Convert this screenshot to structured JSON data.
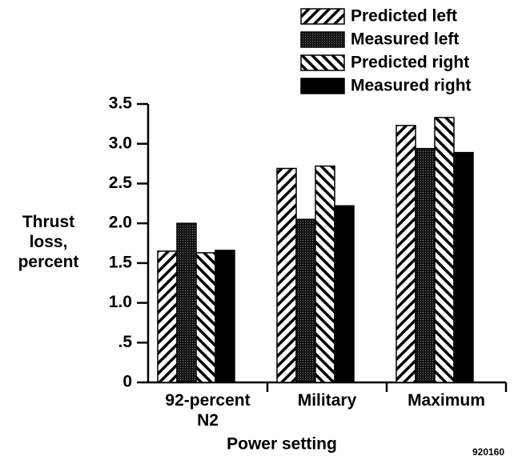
{
  "chart_data": {
    "type": "bar",
    "categories": [
      "92-percent\nN2",
      "Military",
      "Maximum"
    ],
    "series": [
      {
        "name": "Predicted left",
        "color": "#000000",
        "hatch": "/",
        "values": [
          1.65,
          2.69,
          3.23
        ]
      },
      {
        "name": "Measured left",
        "color": "#1a1a1a",
        "hatch": "dots",
        "values": [
          2.0,
          2.05,
          2.94
        ]
      },
      {
        "name": "Predicted right",
        "color": "#000000",
        "hatch": "\\",
        "values": [
          1.63,
          2.72,
          3.33
        ]
      },
      {
        "name": "Measured right",
        "color": "#000000",
        "hatch": "solid",
        "values": [
          1.66,
          2.22,
          2.89
        ]
      }
    ],
    "ylim": [
      0,
      3.5
    ],
    "yticks": [
      0,
      {
        "value": 0.5,
        "label": ".5"
      },
      {
        "value": 1.0,
        "label": "1.0"
      },
      1.5,
      {
        "value": 2.0,
        "label": "2.0"
      },
      2.5,
      {
        "value": 3.0,
        "label": "3.0"
      },
      3.5
    ],
    "ylabel": "Thrust\nloss,\npercent",
    "xlabel": "Power setting",
    "annotation": "920160",
    "legend": "top-right",
    "grid": false
  }
}
